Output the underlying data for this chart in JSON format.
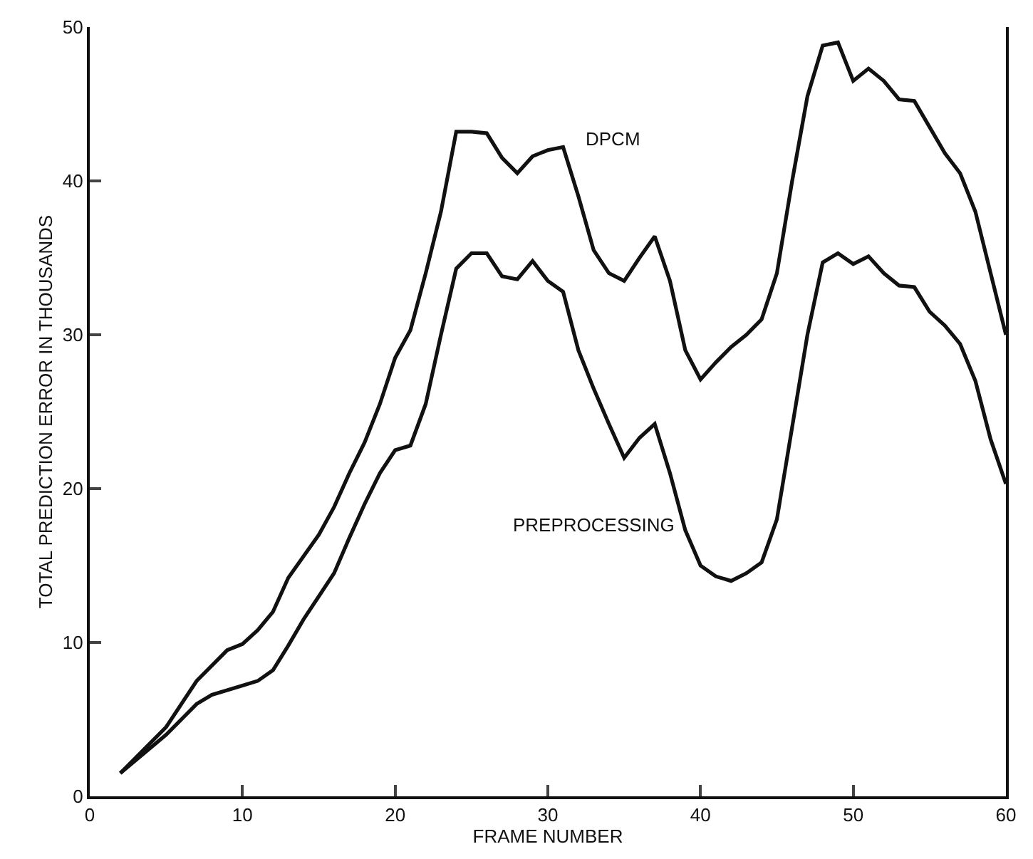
{
  "chart_data": {
    "type": "line",
    "xlabel": "FRAME NUMBER",
    "ylabel": "TOTAL PREDICTION ERROR IN THOUSANDS",
    "x": [
      2,
      5,
      7,
      8,
      9,
      10,
      11,
      12,
      13,
      14,
      15,
      16,
      17,
      18,
      19,
      20,
      21,
      22,
      23,
      24,
      25,
      26,
      27,
      28,
      29,
      30,
      31,
      32,
      33,
      34,
      35,
      36,
      37,
      38,
      39,
      40,
      41,
      42,
      43,
      44,
      45,
      46,
      47,
      48,
      49,
      50,
      51,
      52,
      53,
      54,
      55,
      56,
      57,
      58,
      59,
      60
    ],
    "series": [
      {
        "name": "DPCM",
        "color": "#111111",
        "values": [
          1.5,
          4.5,
          7.5,
          8.5,
          9.5,
          9.9,
          10.8,
          12,
          14.2,
          15.6,
          17,
          18.8,
          21,
          23,
          25.5,
          28.5,
          30.3,
          34,
          38,
          43.2,
          43.2,
          43.1,
          41.5,
          40.5,
          41.6,
          42,
          42.2,
          39,
          35.5,
          34,
          33.5,
          35,
          36.4,
          33.5,
          29,
          27.1,
          28.2,
          29.2,
          30,
          31,
          34,
          40,
          45.5,
          48.8,
          49,
          46.5,
          47.3,
          46.5,
          45.3,
          45.2,
          43.5,
          41.8,
          40.5,
          38,
          34,
          30
        ]
      },
      {
        "name": "PREPROCESSING",
        "color": "#111111",
        "values": [
          1.5,
          4,
          6,
          6.6,
          6.9,
          7.2,
          7.5,
          8.2,
          9.8,
          11.5,
          13,
          14.5,
          16.8,
          19,
          21,
          22.5,
          22.8,
          25.5,
          30,
          34.3,
          35.3,
          35.3,
          33.8,
          33.6,
          34.8,
          33.5,
          32.8,
          29,
          26.5,
          24.2,
          22,
          23.3,
          24.2,
          21,
          17.3,
          15,
          14.3,
          14,
          14.5,
          15.2,
          18,
          24,
          30,
          34.7,
          35.3,
          34.6,
          35.1,
          34,
          33.2,
          33.1,
          31.5,
          30.6,
          29.4,
          27,
          23.2,
          20.3
        ]
      }
    ],
    "xlim": [
      0,
      60
    ],
    "xticks": [
      0,
      10,
      20,
      30,
      40,
      50,
      60
    ],
    "ylim": [
      0,
      50
    ],
    "yticks": [
      0,
      10,
      20,
      30,
      40,
      50
    ],
    "legend": false,
    "marker": "none",
    "line_style": "solid"
  }
}
